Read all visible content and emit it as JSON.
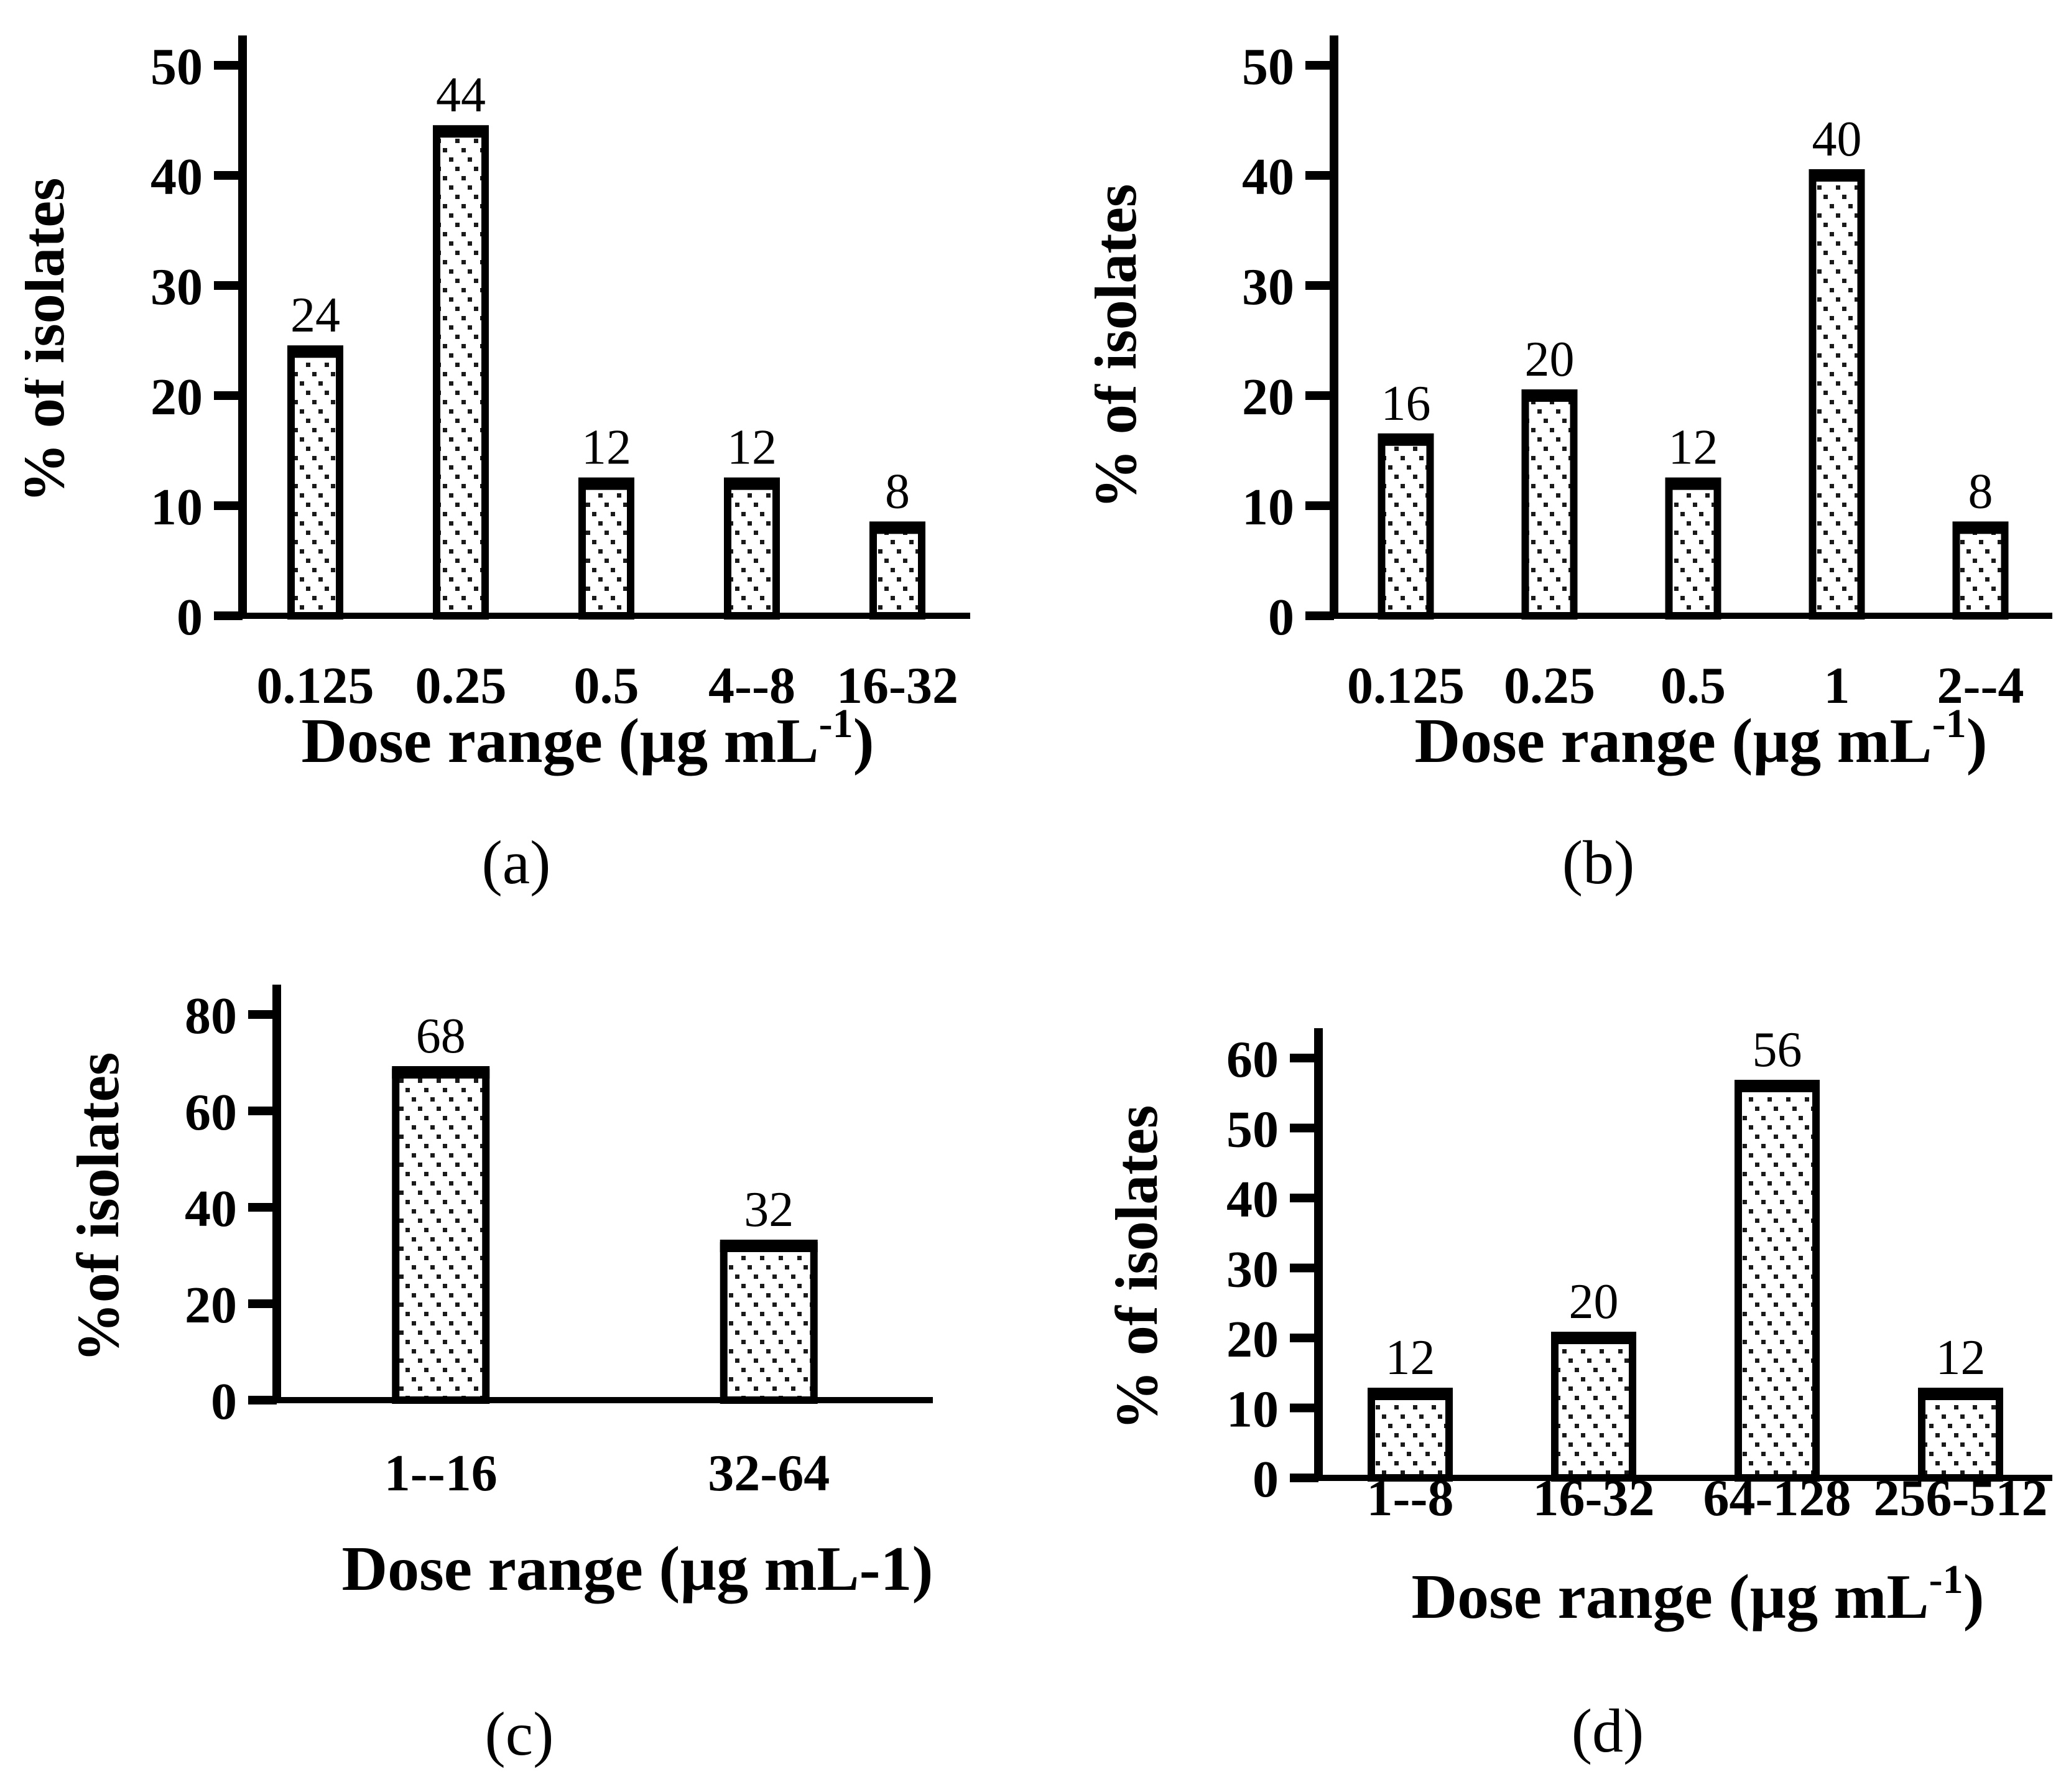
{
  "figure": {
    "description": "Four-panel bar chart figure of percentage of isolates by dose range",
    "panel_captions": [
      "(a)",
      "(b)",
      "(c)",
      "(d)"
    ]
  },
  "chart_data": [
    {
      "type": "bar",
      "caption": "(a)",
      "title": "",
      "ylabel": "% of isolates",
      "xlabel_main": "Dose range (µg mL",
      "xlabel_sup": "-1",
      "xlabel_end": ")",
      "categories": [
        "0.125",
        "0.25",
        "0.5",
        "4--8",
        "16-32"
      ],
      "values": [
        24,
        44,
        12,
        12,
        8
      ],
      "ylim": [
        0,
        50
      ],
      "ystep": 10,
      "grid": "off",
      "legend": "none",
      "bar_fill": "dotted-pattern",
      "bar_color": "#1a1a1a",
      "background": "#ffffff"
    },
    {
      "type": "bar",
      "caption": "(b)",
      "title": "",
      "ylabel": "% of isolates",
      "xlabel_main": "Dose range (µg mL",
      "xlabel_sup": "-1",
      "xlabel_end": ")",
      "categories": [
        "0.125",
        "0.25",
        "0.5",
        "1",
        "2--4"
      ],
      "values": [
        16,
        20,
        12,
        40,
        8
      ],
      "ylim": [
        0,
        50
      ],
      "ystep": 10,
      "grid": "off",
      "legend": "none",
      "bar_fill": "dotted-pattern",
      "bar_color": "#1a1a1a",
      "background": "#ffffff"
    },
    {
      "type": "bar",
      "caption": "(c)",
      "title": "",
      "ylabel": "%of isolates",
      "xlabel_main": "Dose range (µg mL-1)",
      "xlabel_sup": "",
      "xlabel_end": "",
      "categories": [
        "1--16",
        "32-64"
      ],
      "values": [
        68,
        32
      ],
      "ylim": [
        0,
        80
      ],
      "ystep": 20,
      "grid": "off",
      "legend": "none",
      "bar_fill": "dotted-pattern",
      "bar_color": "#1a1a1a",
      "background": "#ffffff"
    },
    {
      "type": "bar",
      "caption": "(d)",
      "title": "",
      "ylabel": "% of isolates",
      "xlabel_main": "Dose range (µg mL",
      "xlabel_sup": "-1",
      "xlabel_end": ")",
      "categories": [
        "1--8",
        "16-32",
        "64-128",
        "256-512"
      ],
      "values": [
        12,
        20,
        56,
        12
      ],
      "ylim": [
        0,
        60
      ],
      "ystep": 10,
      "grid": "off",
      "legend": "none",
      "bar_fill": "dotted-pattern",
      "bar_color": "#1a1a1a",
      "background": "#ffffff"
    }
  ]
}
